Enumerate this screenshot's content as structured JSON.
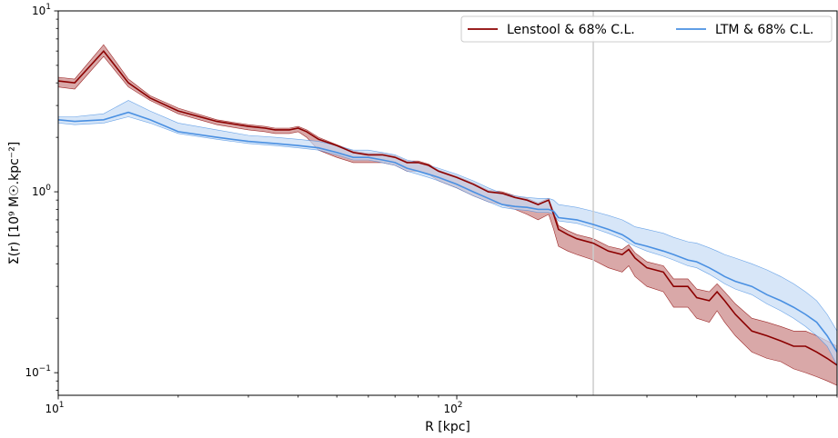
{
  "chart_data": {
    "type": "line",
    "title": "",
    "xlabel": "R [kpc]",
    "ylabel": "Σ(r) [10⁹ M☉.kpc⁻²]",
    "xscale": "log",
    "yscale": "log",
    "xlim": [
      10,
      900
    ],
    "ylim": [
      0.075,
      10
    ],
    "x_ticks": [
      {
        "value": 10,
        "base": "10",
        "exp": "1"
      },
      {
        "value": 100,
        "base": "10",
        "exp": "2"
      }
    ],
    "y_ticks": [
      {
        "value": 0.1,
        "base": "10",
        "exp": "−1"
      },
      {
        "value": 1,
        "base": "10",
        "exp": "0"
      },
      {
        "value": 10,
        "base": "10",
        "exp": "1"
      }
    ],
    "vline": {
      "x": 220,
      "color": "#cccccc"
    },
    "legend": {
      "placement": "top-right"
    },
    "series": [
      {
        "name": "Lenstool & 68% C.L.",
        "color": "#8b0000",
        "fill": "#c98383",
        "x": [
          10,
          11,
          13,
          15,
          17,
          20,
          25,
          30,
          33,
          35,
          38,
          40,
          42,
          45,
          50,
          55,
          60,
          65,
          70,
          75,
          80,
          85,
          90,
          100,
          110,
          120,
          130,
          140,
          150,
          160,
          170,
          175,
          180,
          190,
          200,
          220,
          240,
          260,
          270,
          280,
          300,
          330,
          350,
          380,
          400,
          430,
          450,
          470,
          500,
          550,
          600,
          650,
          700,
          750,
          800,
          850,
          900
        ],
        "y": [
          4.1,
          4.0,
          6.0,
          4.0,
          3.3,
          2.8,
          2.45,
          2.3,
          2.25,
          2.2,
          2.2,
          2.25,
          2.15,
          1.95,
          1.8,
          1.65,
          1.6,
          1.6,
          1.55,
          1.45,
          1.45,
          1.4,
          1.3,
          1.2,
          1.1,
          1.0,
          0.98,
          0.93,
          0.9,
          0.85,
          0.9,
          0.75,
          0.62,
          0.58,
          0.55,
          0.52,
          0.47,
          0.45,
          0.48,
          0.43,
          0.38,
          0.36,
          0.3,
          0.3,
          0.26,
          0.25,
          0.28,
          0.25,
          0.21,
          0.17,
          0.16,
          0.15,
          0.14,
          0.14,
          0.13,
          0.12,
          0.11
        ],
        "lower": [
          3.8,
          3.7,
          5.6,
          3.8,
          3.2,
          2.7,
          2.35,
          2.2,
          2.15,
          2.1,
          2.1,
          2.15,
          2.0,
          1.7,
          1.55,
          1.45,
          1.45,
          1.45,
          1.4,
          1.3,
          1.3,
          1.25,
          1.15,
          1.05,
          0.95,
          0.88,
          0.85,
          0.8,
          0.75,
          0.7,
          0.75,
          0.62,
          0.5,
          0.47,
          0.45,
          0.42,
          0.38,
          0.36,
          0.39,
          0.34,
          0.3,
          0.28,
          0.23,
          0.23,
          0.2,
          0.19,
          0.22,
          0.19,
          0.16,
          0.13,
          0.12,
          0.115,
          0.105,
          0.1,
          0.095,
          0.09,
          0.085
        ],
        "upper": [
          4.3,
          4.2,
          6.5,
          4.2,
          3.4,
          2.9,
          2.5,
          2.35,
          2.3,
          2.25,
          2.25,
          2.3,
          2.2,
          2.0,
          1.82,
          1.68,
          1.63,
          1.63,
          1.58,
          1.48,
          1.48,
          1.42,
          1.32,
          1.22,
          1.12,
          1.02,
          1.0,
          0.95,
          0.92,
          0.87,
          0.92,
          0.78,
          0.65,
          0.61,
          0.58,
          0.55,
          0.5,
          0.48,
          0.51,
          0.46,
          0.41,
          0.39,
          0.33,
          0.33,
          0.29,
          0.28,
          0.31,
          0.28,
          0.24,
          0.2,
          0.19,
          0.18,
          0.17,
          0.17,
          0.16,
          0.15,
          0.14
        ]
      },
      {
        "name": "LTM & 68% C.L.",
        "color": "#4a90e2",
        "fill": "#c6dcf5",
        "x": [
          10,
          11,
          13,
          15,
          17,
          20,
          25,
          30,
          35,
          40,
          45,
          50,
          55,
          60,
          65,
          70,
          75,
          80,
          85,
          90,
          100,
          110,
          120,
          130,
          140,
          150,
          160,
          170,
          175,
          180,
          200,
          220,
          240,
          260,
          270,
          280,
          300,
          330,
          350,
          380,
          400,
          430,
          450,
          470,
          500,
          550,
          600,
          650,
          700,
          750,
          800,
          850,
          900
        ],
        "y": [
          2.5,
          2.45,
          2.5,
          2.75,
          2.5,
          2.15,
          2.0,
          1.9,
          1.85,
          1.8,
          1.75,
          1.65,
          1.55,
          1.55,
          1.5,
          1.45,
          1.35,
          1.3,
          1.25,
          1.2,
          1.1,
          1.0,
          0.92,
          0.85,
          0.83,
          0.82,
          0.8,
          0.8,
          0.78,
          0.72,
          0.7,
          0.66,
          0.62,
          0.58,
          0.55,
          0.52,
          0.5,
          0.47,
          0.45,
          0.42,
          0.41,
          0.38,
          0.36,
          0.34,
          0.32,
          0.3,
          0.27,
          0.25,
          0.23,
          0.21,
          0.19,
          0.16,
          0.13
        ],
        "lower": [
          2.4,
          2.35,
          2.4,
          2.6,
          2.4,
          2.1,
          1.95,
          1.85,
          1.8,
          1.75,
          1.7,
          1.6,
          1.5,
          1.5,
          1.45,
          1.4,
          1.3,
          1.25,
          1.2,
          1.15,
          1.05,
          0.95,
          0.88,
          0.82,
          0.8,
          0.79,
          0.77,
          0.77,
          0.75,
          0.69,
          0.67,
          0.63,
          0.59,
          0.55,
          0.52,
          0.5,
          0.47,
          0.44,
          0.42,
          0.39,
          0.38,
          0.35,
          0.33,
          0.31,
          0.29,
          0.27,
          0.24,
          0.22,
          0.2,
          0.18,
          0.16,
          0.14,
          0.11
        ],
        "upper": [
          2.6,
          2.6,
          2.7,
          3.2,
          2.8,
          2.4,
          2.2,
          2.05,
          2.0,
          1.95,
          1.9,
          1.8,
          1.7,
          1.7,
          1.65,
          1.6,
          1.5,
          1.45,
          1.4,
          1.35,
          1.25,
          1.15,
          1.05,
          0.98,
          0.95,
          0.93,
          0.92,
          0.92,
          0.9,
          0.85,
          0.82,
          0.78,
          0.74,
          0.7,
          0.67,
          0.64,
          0.62,
          0.59,
          0.56,
          0.53,
          0.52,
          0.49,
          0.47,
          0.45,
          0.43,
          0.4,
          0.37,
          0.34,
          0.31,
          0.28,
          0.25,
          0.21,
          0.17
        ]
      }
    ]
  }
}
